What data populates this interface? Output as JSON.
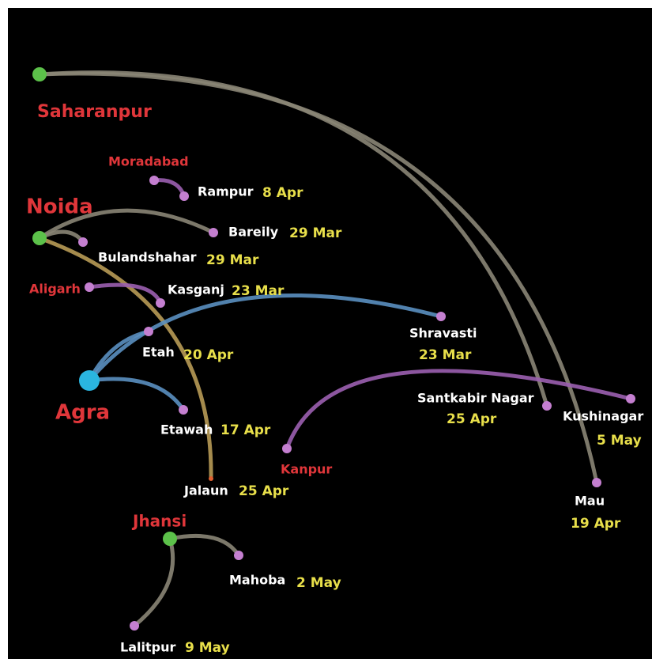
{
  "origins": [
    {
      "label": "Saharanpur"
    },
    {
      "label": "Moradabad"
    },
    {
      "label": "Noida"
    },
    {
      "label": "Aligarh"
    },
    {
      "label": "Agra"
    },
    {
      "label": "Kanpur"
    },
    {
      "label": "Jhansi"
    }
  ],
  "destinations": [
    {
      "name": "Rampur",
      "date": "8 Apr"
    },
    {
      "name": "Bareily",
      "date": "29 Mar"
    },
    {
      "name": "Bulandshahar",
      "date": "29 Mar"
    },
    {
      "name": "Kasganj",
      "date": "23 Mar"
    },
    {
      "name": "Shravasti",
      "date": "23 Mar"
    },
    {
      "name": "Etah",
      "date": "20 Apr"
    },
    {
      "name": "Santkabir Nagar",
      "date": "25 Apr"
    },
    {
      "name": "Kushinagar",
      "date": "5 May"
    },
    {
      "name": "Etawah",
      "date": "17 Apr"
    },
    {
      "name": "Jalaun",
      "date": "25 Apr"
    },
    {
      "name": "Mau",
      "date": "19 Apr"
    },
    {
      "name": "Mahoba",
      "date": "2 May"
    },
    {
      "name": "Lalitpur",
      "date": "9 May"
    }
  ]
}
